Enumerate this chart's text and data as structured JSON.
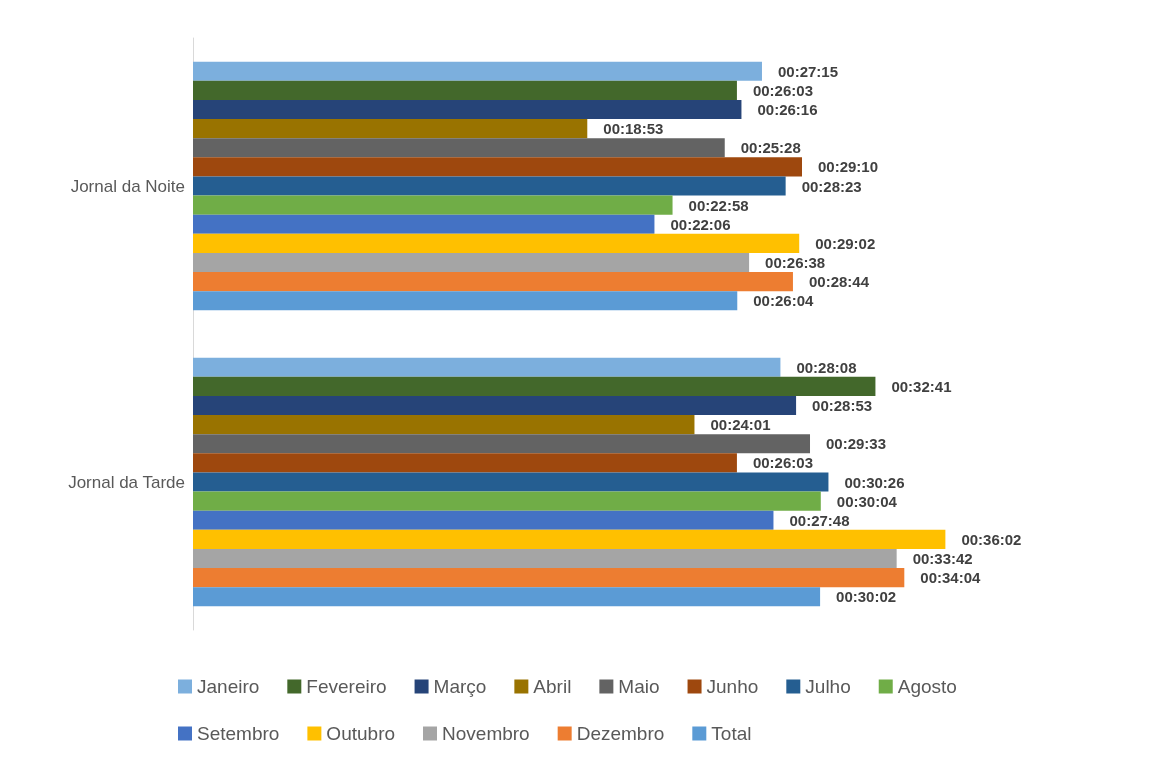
{
  "chart_data": {
    "type": "bar",
    "orientation": "horizontal",
    "categories": [
      "Jornal da Noite",
      "Jornal da Tarde"
    ],
    "legend": "bottom",
    "series": [
      {
        "name": "Janeiro",
        "color": "#7cafdd",
        "values": [
          1635,
          1688
        ],
        "value_labels": [
          "00:27:15",
          "00:28:08"
        ]
      },
      {
        "name": "Fevereiro",
        "color": "#43682b",
        "values": [
          1563,
          1961
        ],
        "value_labels": [
          "00:26:03",
          "00:32:41"
        ]
      },
      {
        "name": "Março",
        "color": "#264478",
        "values": [
          1576,
          1733
        ],
        "value_labels": [
          "00:26:16",
          "00:28:53"
        ]
      },
      {
        "name": "Abril",
        "color": "#997300",
        "values": [
          1133,
          1441
        ],
        "value_labels": [
          "00:18:53",
          "00:24:01"
        ]
      },
      {
        "name": "Maio",
        "color": "#636363",
        "values": [
          1528,
          1773
        ],
        "value_labels": [
          "00:25:28",
          "00:29:33"
        ]
      },
      {
        "name": "Junho",
        "color": "#9e480e",
        "values": [
          1750,
          1563
        ],
        "value_labels": [
          "00:29:10",
          "00:26:03"
        ]
      },
      {
        "name": "Julho",
        "color": "#255e91",
        "values": [
          1703,
          1826
        ],
        "value_labels": [
          "00:28:23",
          "00:30:26"
        ]
      },
      {
        "name": "Agosto",
        "color": "#70ad47",
        "values": [
          1378,
          1804
        ],
        "value_labels": [
          "00:22:58",
          "00:30:04"
        ]
      },
      {
        "name": "Setembro",
        "color": "#4472c4",
        "values": [
          1326,
          1668
        ],
        "value_labels": [
          "00:22:06",
          "00:27:48"
        ]
      },
      {
        "name": "Outubro",
        "color": "#ffc000",
        "values": [
          1742,
          2162
        ],
        "value_labels": [
          "00:29:02",
          "00:36:02"
        ]
      },
      {
        "name": "Novembro",
        "color": "#a5a5a5",
        "values": [
          1598,
          2022
        ],
        "value_labels": [
          "00:26:38",
          "00:33:42"
        ]
      },
      {
        "name": "Dezembro",
        "color": "#ed7d31",
        "values": [
          1724,
          2044
        ],
        "value_labels": [
          "00:28:44",
          "00:34:04"
        ]
      },
      {
        "name": "Total",
        "color": "#5b9bd5",
        "values": [
          1564,
          1802
        ],
        "value_labels": [
          "00:26:04",
          "00:30:02"
        ]
      }
    ]
  }
}
